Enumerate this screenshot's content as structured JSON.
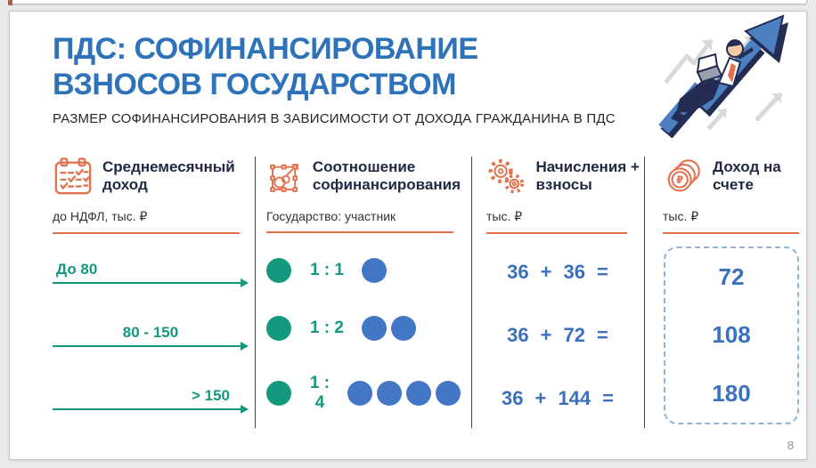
{
  "header": {
    "title_line1": "ПДС: СОФИНАНСИРОВАНИЕ",
    "title_line2": "ВЗНОСОВ ГОСУДАРСТВОМ",
    "subtitle": "РАЗМЕР СОФИНАНСИРОВАНИЯ В ЗАВИСИМОСТИ ОТ ДОХОДА ГРАЖДАНИНА В ПДС"
  },
  "columns": [
    {
      "icon": "calendar-icon",
      "title": "Среднемесячный доход",
      "unit": "до НДФЛ, тыс. ₽"
    },
    {
      "icon": "ratio-icon",
      "title": "Соотношение софинансирования",
      "unit": "Государство: участник"
    },
    {
      "icon": "gears-icon",
      "title": "Начисления + взносы",
      "unit": "тыс. ₽"
    },
    {
      "icon": "coins-icon",
      "title": "Доход на счете",
      "unit": "тыс. ₽"
    }
  ],
  "rows": [
    {
      "income": "До 80",
      "state_circles": 1,
      "ratio": "1 : 1",
      "participant_circles": 1,
      "eq_a": "36",
      "eq_plus": "+",
      "eq_b": "36",
      "eq_sign": "=",
      "result": "72"
    },
    {
      "income": "80 - 150",
      "state_circles": 1,
      "ratio": "1 : 2",
      "participant_circles": 2,
      "eq_a": "36",
      "eq_plus": "+",
      "eq_b": "72",
      "eq_sign": "=",
      "result": "108"
    },
    {
      "income": "> 150",
      "state_circles": 1,
      "ratio": "1 : 4",
      "participant_circles": 4,
      "eq_a": "36",
      "eq_plus": "+",
      "eq_b": "144",
      "eq_sign": "=",
      "result": "180"
    }
  ],
  "page_number": "8",
  "colors": {
    "title_blue": "#2e73b9",
    "teal": "#13997d",
    "circle_blue": "#4377c6",
    "value_blue": "#3a70be",
    "icon_orange": "#e2714e",
    "navy_text": "#202a44",
    "dashed_border": "#8fb4dc"
  }
}
